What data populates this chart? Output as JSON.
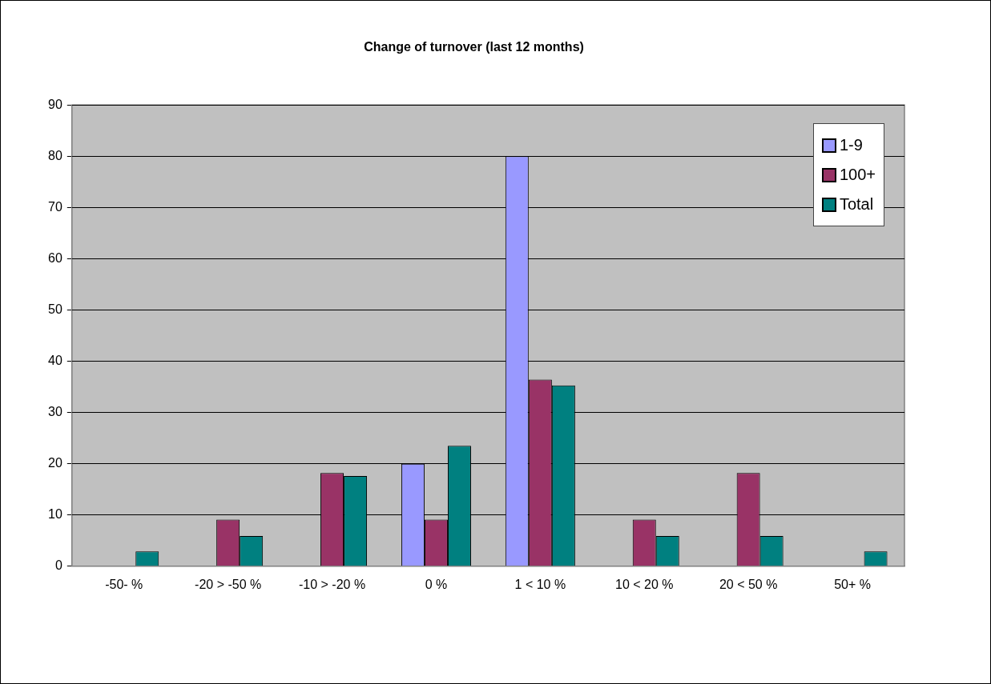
{
  "chart_data": {
    "type": "bar",
    "title": "Change of turnover (last 12 months)",
    "categories": [
      "-50- %",
      "-20 > -50 %",
      "-10 > -20 %",
      "0 %",
      "1 < 10 %",
      "10 < 20 %",
      "20 < 50 %",
      "50+ %"
    ],
    "series": [
      {
        "name": "1-9",
        "color": "#9999ff",
        "values": [
          null,
          null,
          null,
          20,
          80,
          null,
          null,
          null
        ]
      },
      {
        "name": "100+",
        "color": "#993366",
        "values": [
          null,
          9.1,
          18.2,
          9.1,
          36.4,
          9.1,
          18.2,
          null
        ]
      },
      {
        "name": "Total",
        "color": "#008080",
        "values": [
          2.9,
          5.9,
          17.6,
          23.5,
          35.3,
          5.9,
          5.9,
          2.9
        ]
      }
    ],
    "ylim": [
      0,
      90
    ],
    "yticks": [
      0,
      10,
      20,
      30,
      40,
      50,
      60,
      70,
      80,
      90
    ],
    "grid": "y",
    "legend": "top right"
  }
}
